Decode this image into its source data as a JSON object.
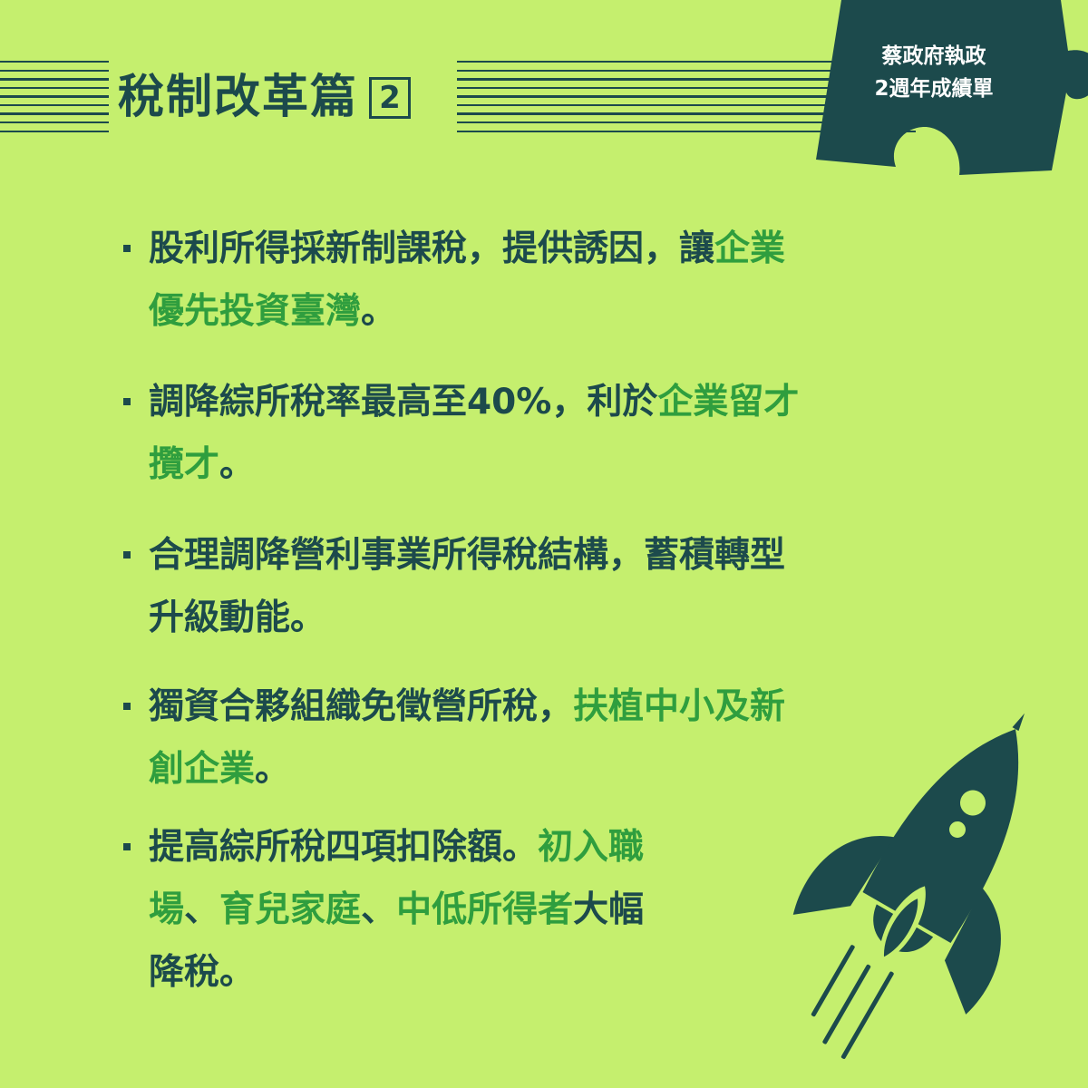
{
  "header": {
    "title": "稅制改革篇",
    "number": "2"
  },
  "badge": {
    "line1": "蔡政府執政",
    "line2": "2週年成績單"
  },
  "bullets": [
    {
      "line1": [
        {
          "t": "股利所得採新制課稅，提供誘因，讓"
        },
        {
          "t": "企業",
          "hl": true
        }
      ],
      "line2": [
        {
          "t": "優先投資臺灣",
          "hl": true
        },
        {
          "t": "。"
        }
      ]
    },
    {
      "line1": [
        {
          "t": "調降綜所稅率最高至40%，利於"
        },
        {
          "t": "企業留才",
          "hl": true
        }
      ],
      "line2": [
        {
          "t": "攬才",
          "hl": true
        },
        {
          "t": "。"
        }
      ]
    },
    {
      "line1": [
        {
          "t": "合理調降營利事業所得稅結構，蓄積轉型"
        }
      ],
      "line2": [
        {
          "t": "升級動能。"
        }
      ]
    },
    {
      "line1": [
        {
          "t": "獨資合夥組織免徵營所稅，"
        },
        {
          "t": "扶植中小及新",
          "hl": true
        }
      ],
      "line2": [
        {
          "t": "創企業",
          "hl": true
        },
        {
          "t": "。"
        }
      ]
    },
    {
      "line1": [
        {
          "t": "提高綜所稅四項扣除額。"
        },
        {
          "t": "初入職",
          "hl": true
        }
      ],
      "line2": [
        {
          "t": "場",
          "hl": true
        },
        {
          "t": "、"
        },
        {
          "t": "育兒家庭",
          "hl": true
        },
        {
          "t": "、"
        },
        {
          "t": "中低所得者",
          "hl": true
        },
        {
          "t": "大幅"
        }
      ],
      "line3": [
        {
          "t": "降稅。"
        }
      ]
    }
  ],
  "colors": {
    "background": "#c5ef6e",
    "dark": "#1c4a4c",
    "highlight": "#2f9e3e"
  },
  "icons": [
    "puzzle-piece-icon",
    "rocket-icon"
  ]
}
